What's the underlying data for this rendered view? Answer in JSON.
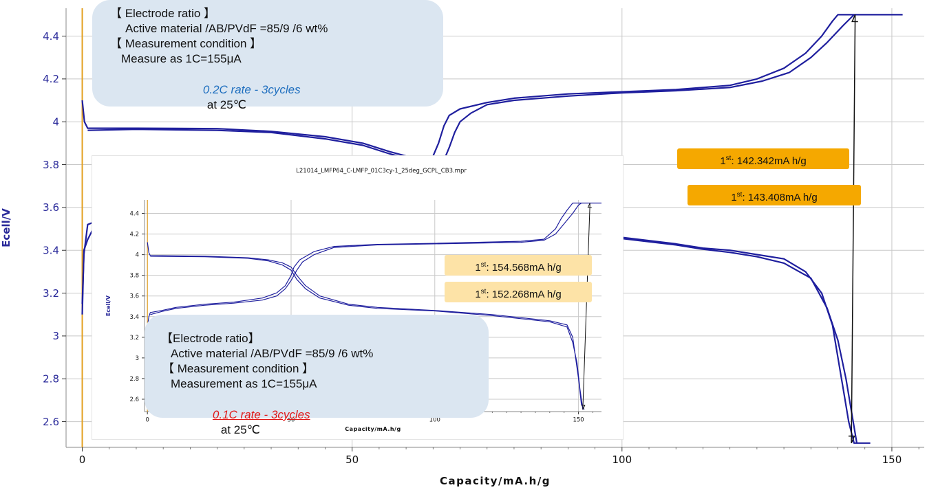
{
  "colors": {
    "curve": "#1f1f9e",
    "marker_line": "#e3a020",
    "grid": "#c8c8c8",
    "axis_text": "#111111",
    "ylabel_text": "#2a2a9a",
    "label_main_bg": "#f5a800",
    "label_inset_bg": "#fde3a7",
    "note_bg": "#dbe6f1",
    "rate_main_text": "#1f6fbf",
    "rate_inset_text": "#e01818"
  },
  "chart_data": [
    {
      "type": "line",
      "title": "",
      "xlabel": "Capacity/mA.h/g",
      "ylabel": "Ecell/V",
      "xlim": [
        -3,
        156
      ],
      "ylim": [
        2.48,
        4.53
      ],
      "xticks": [
        0,
        50,
        100,
        150
      ],
      "yticks": [
        2.6,
        2.8,
        3.0,
        3.2,
        3.4,
        3.6,
        3.8,
        4.0,
        4.2,
        4.4
      ],
      "ytick_labels": [
        "2.6",
        "2.8",
        "3",
        "3.2",
        "3.4",
        "3.6",
        "3.8",
        "4",
        "4.2",
        "4.4"
      ],
      "grid": true,
      "series": [
        {
          "values": [
            [
              0,
              3.1
            ],
            [
              0.3,
              3.4
            ],
            [
              1,
              3.45
            ],
            [
              2,
              3.5
            ],
            [
              4,
              3.51
            ],
            [
              6,
              3.52
            ]
          ]
        },
        {
          "values": [
            [
              0,
              3.15
            ],
            [
              0.3,
              3.38
            ],
            [
              1,
              3.52
            ],
            [
              2,
              3.53
            ],
            [
              4,
              3.53
            ],
            [
              6,
              3.535
            ]
          ]
        },
        {
          "values": [
            [
              0,
              4.1
            ],
            [
              0.4,
              4.0
            ],
            [
              1,
              3.97
            ],
            [
              3,
              3.97
            ],
            [
              10,
              3.97
            ],
            [
              25,
              3.968
            ],
            [
              35,
              3.955
            ],
            [
              45,
              3.93
            ],
            [
              52,
              3.9
            ],
            [
              57,
              3.86
            ],
            [
              60,
              3.84
            ],
            [
              63,
              3.82
            ],
            [
              65,
              3.84
            ],
            [
              66,
              3.9
            ],
            [
              67,
              3.98
            ],
            [
              68,
              4.03
            ],
            [
              70,
              4.06
            ],
            [
              75,
              4.09
            ],
            [
              80,
              4.11
            ],
            [
              90,
              4.13
            ],
            [
              100,
              4.14
            ],
            [
              110,
              4.15
            ],
            [
              120,
              4.17
            ],
            [
              125,
              4.2
            ],
            [
              130,
              4.25
            ],
            [
              134,
              4.32
            ],
            [
              137,
              4.4
            ],
            [
              139,
              4.47
            ],
            [
              140,
              4.5
            ],
            [
              145,
              4.5
            ],
            [
              152,
              4.5
            ]
          ]
        },
        {
          "values": [
            [
              1,
              3.96
            ],
            [
              10,
              3.965
            ],
            [
              25,
              3.96
            ],
            [
              35,
              3.95
            ],
            [
              45,
              3.92
            ],
            [
              52,
              3.89
            ],
            [
              57,
              3.85
            ],
            [
              60,
              3.83
            ],
            [
              64,
              3.8
            ],
            [
              66,
              3.79
            ],
            [
              67,
              3.82
            ],
            [
              68,
              3.88
            ],
            [
              69,
              3.95
            ],
            [
              70,
              4.0
            ],
            [
              72,
              4.04
            ],
            [
              75,
              4.08
            ],
            [
              80,
              4.1
            ],
            [
              90,
              4.12
            ],
            [
              100,
              4.135
            ],
            [
              110,
              4.145
            ],
            [
              120,
              4.16
            ],
            [
              126,
              4.19
            ],
            [
              131,
              4.23
            ],
            [
              135,
              4.3
            ],
            [
              138,
              4.37
            ],
            [
              141,
              4.45
            ],
            [
              143,
              4.5
            ]
          ]
        },
        {
          "values": [
            [
              100,
              3.46
            ],
            [
              110,
              3.43
            ],
            [
              115,
              3.41
            ],
            [
              120,
              3.4
            ],
            [
              125,
              3.38
            ],
            [
              130,
              3.36
            ],
            [
              134,
              3.3
            ],
            [
              137,
              3.2
            ],
            [
              139,
              3.05
            ],
            [
              140,
              2.9
            ],
            [
              141,
              2.75
            ],
            [
              142,
              2.6
            ],
            [
              143,
              2.5
            ],
            [
              146,
              2.5
            ]
          ]
        },
        {
          "values": [
            [
              100,
              3.455
            ],
            [
              110,
              3.425
            ],
            [
              115,
              3.405
            ],
            [
              120,
              3.39
            ],
            [
              125,
              3.37
            ],
            [
              130,
              3.34
            ],
            [
              135,
              3.27
            ],
            [
              138,
              3.13
            ],
            [
              140,
              2.98
            ],
            [
              141.5,
              2.8
            ],
            [
              142.5,
              2.65
            ],
            [
              143.5,
              2.5
            ]
          ]
        }
      ],
      "arrow": {
        "from": [
          142.5,
          2.5
        ],
        "to": [
          143.2,
          4.5
        ]
      },
      "labels": [
        {
          "prefix": "1",
          "sup": "st",
          "text": ": 142.342mA h/g"
        },
        {
          "prefix": "1",
          "sup": "st",
          "text": ": 143.408mA h/g"
        }
      ],
      "note": {
        "lines": [
          "【 Electrode ratio 】",
          "Active material /AB/PVdF =85/9 /6 wt%",
          "【 Measurement condition 】",
          "Measure as 1C=155μA"
        ],
        "rate": "0.2C rate - 3cycles",
        "temp": "at 25℃"
      }
    },
    {
      "type": "line",
      "title": "L21014_LMFP64_C-LMFP_01C3cy-1_25deg_GCPL_CB3.mpr",
      "xlabel": "Capacity/mA.h/g",
      "ylabel": "Ecell/V",
      "xlim": [
        -1,
        158
      ],
      "ylim": [
        2.48,
        4.53
      ],
      "xticks": [
        0,
        50,
        100,
        150
      ],
      "yticks": [
        2.6,
        2.8,
        3.0,
        3.2,
        3.4,
        3.6,
        3.8,
        4.0,
        4.2,
        4.4
      ],
      "ytick_labels": [
        "2.6",
        "2.8",
        "3",
        "3.2",
        "3.4",
        "3.6",
        "3.8",
        "4",
        "4.2",
        "4.4"
      ],
      "grid": true,
      "series": [
        {
          "values": [
            [
              0,
              4.12
            ],
            [
              0.5,
              4.02
            ],
            [
              1,
              3.99
            ],
            [
              5,
              3.99
            ],
            [
              20,
              3.985
            ],
            [
              35,
              3.97
            ],
            [
              42,
              3.95
            ],
            [
              47,
              3.92
            ],
            [
              50,
              3.88
            ],
            [
              52,
              3.8
            ],
            [
              55,
              3.7
            ],
            [
              60,
              3.6
            ],
            [
              70,
              3.52
            ],
            [
              80,
              3.49
            ],
            [
              100,
              3.46
            ],
            [
              120,
              3.42
            ],
            [
              140,
              3.36
            ],
            [
              146,
              3.32
            ],
            [
              148,
              3.2
            ],
            [
              149,
              3.0
            ],
            [
              150,
              2.8
            ],
            [
              151,
              2.55
            ],
            [
              152,
              2.5
            ]
          ]
        },
        {
          "values": [
            [
              1,
              3.985
            ],
            [
              20,
              3.98
            ],
            [
              35,
              3.965
            ],
            [
              42,
              3.94
            ],
            [
              47,
              3.9
            ],
            [
              50,
              3.85
            ],
            [
              52,
              3.76
            ],
            [
              55,
              3.67
            ],
            [
              60,
              3.58
            ],
            [
              70,
              3.51
            ],
            [
              80,
              3.48
            ],
            [
              100,
              3.455
            ],
            [
              120,
              3.41
            ],
            [
              140,
              3.35
            ],
            [
              146,
              3.3
            ],
            [
              148,
              3.15
            ],
            [
              149.5,
              2.95
            ],
            [
              150.5,
              2.7
            ],
            [
              151.5,
              2.5
            ]
          ]
        },
        {
          "values": [
            [
              0,
              3.3
            ],
            [
              0.5,
              3.4
            ],
            [
              1,
              3.44
            ],
            [
              5,
              3.46
            ],
            [
              10,
              3.49
            ],
            [
              20,
              3.52
            ],
            [
              30,
              3.54
            ],
            [
              40,
              3.58
            ],
            [
              45,
              3.63
            ],
            [
              48,
              3.7
            ],
            [
              50,
              3.8
            ],
            [
              51,
              3.88
            ],
            [
              53,
              3.95
            ],
            [
              58,
              4.03
            ],
            [
              65,
              4.08
            ],
            [
              80,
              4.1
            ],
            [
              100,
              4.11
            ],
            [
              130,
              4.13
            ],
            [
              138,
              4.15
            ],
            [
              142,
              4.25
            ],
            [
              144,
              4.35
            ],
            [
              146,
              4.43
            ],
            [
              148,
              4.5
            ],
            [
              152,
              4.5
            ],
            [
              158,
              4.5
            ]
          ]
        },
        {
          "values": [
            [
              1,
              3.42
            ],
            [
              5,
              3.45
            ],
            [
              10,
              3.48
            ],
            [
              20,
              3.51
            ],
            [
              30,
              3.53
            ],
            [
              40,
              3.56
            ],
            [
              45,
              3.6
            ],
            [
              48,
              3.67
            ],
            [
              50,
              3.75
            ],
            [
              52,
              3.85
            ],
            [
              54,
              3.93
            ],
            [
              58,
              4.0
            ],
            [
              65,
              4.07
            ],
            [
              80,
              4.095
            ],
            [
              100,
              4.105
            ],
            [
              130,
              4.12
            ],
            [
              138,
              4.14
            ],
            [
              142,
              4.2
            ],
            [
              145,
              4.3
            ],
            [
              148,
              4.4
            ],
            [
              150,
              4.48
            ],
            [
              151,
              4.5
            ]
          ]
        }
      ],
      "arrow": {
        "from": [
          151.5,
          2.5
        ],
        "to": [
          154,
          4.5
        ]
      },
      "labels": [
        {
          "prefix": "1",
          "sup": "st",
          "text": ": 154.568mA h/g"
        },
        {
          "prefix": "1",
          "sup": "st",
          "text": ": 152.268mA h/g"
        }
      ],
      "note": {
        "lines": [
          "【Electrode ratio】",
          "Active material /AB/PVdF =85/9 /6 wt%",
          "【 Measurement condition 】",
          "Measurement as 1C=155μA"
        ],
        "rate": "0.1C rate - 3cycles",
        "temp": "at 25℃"
      }
    }
  ]
}
